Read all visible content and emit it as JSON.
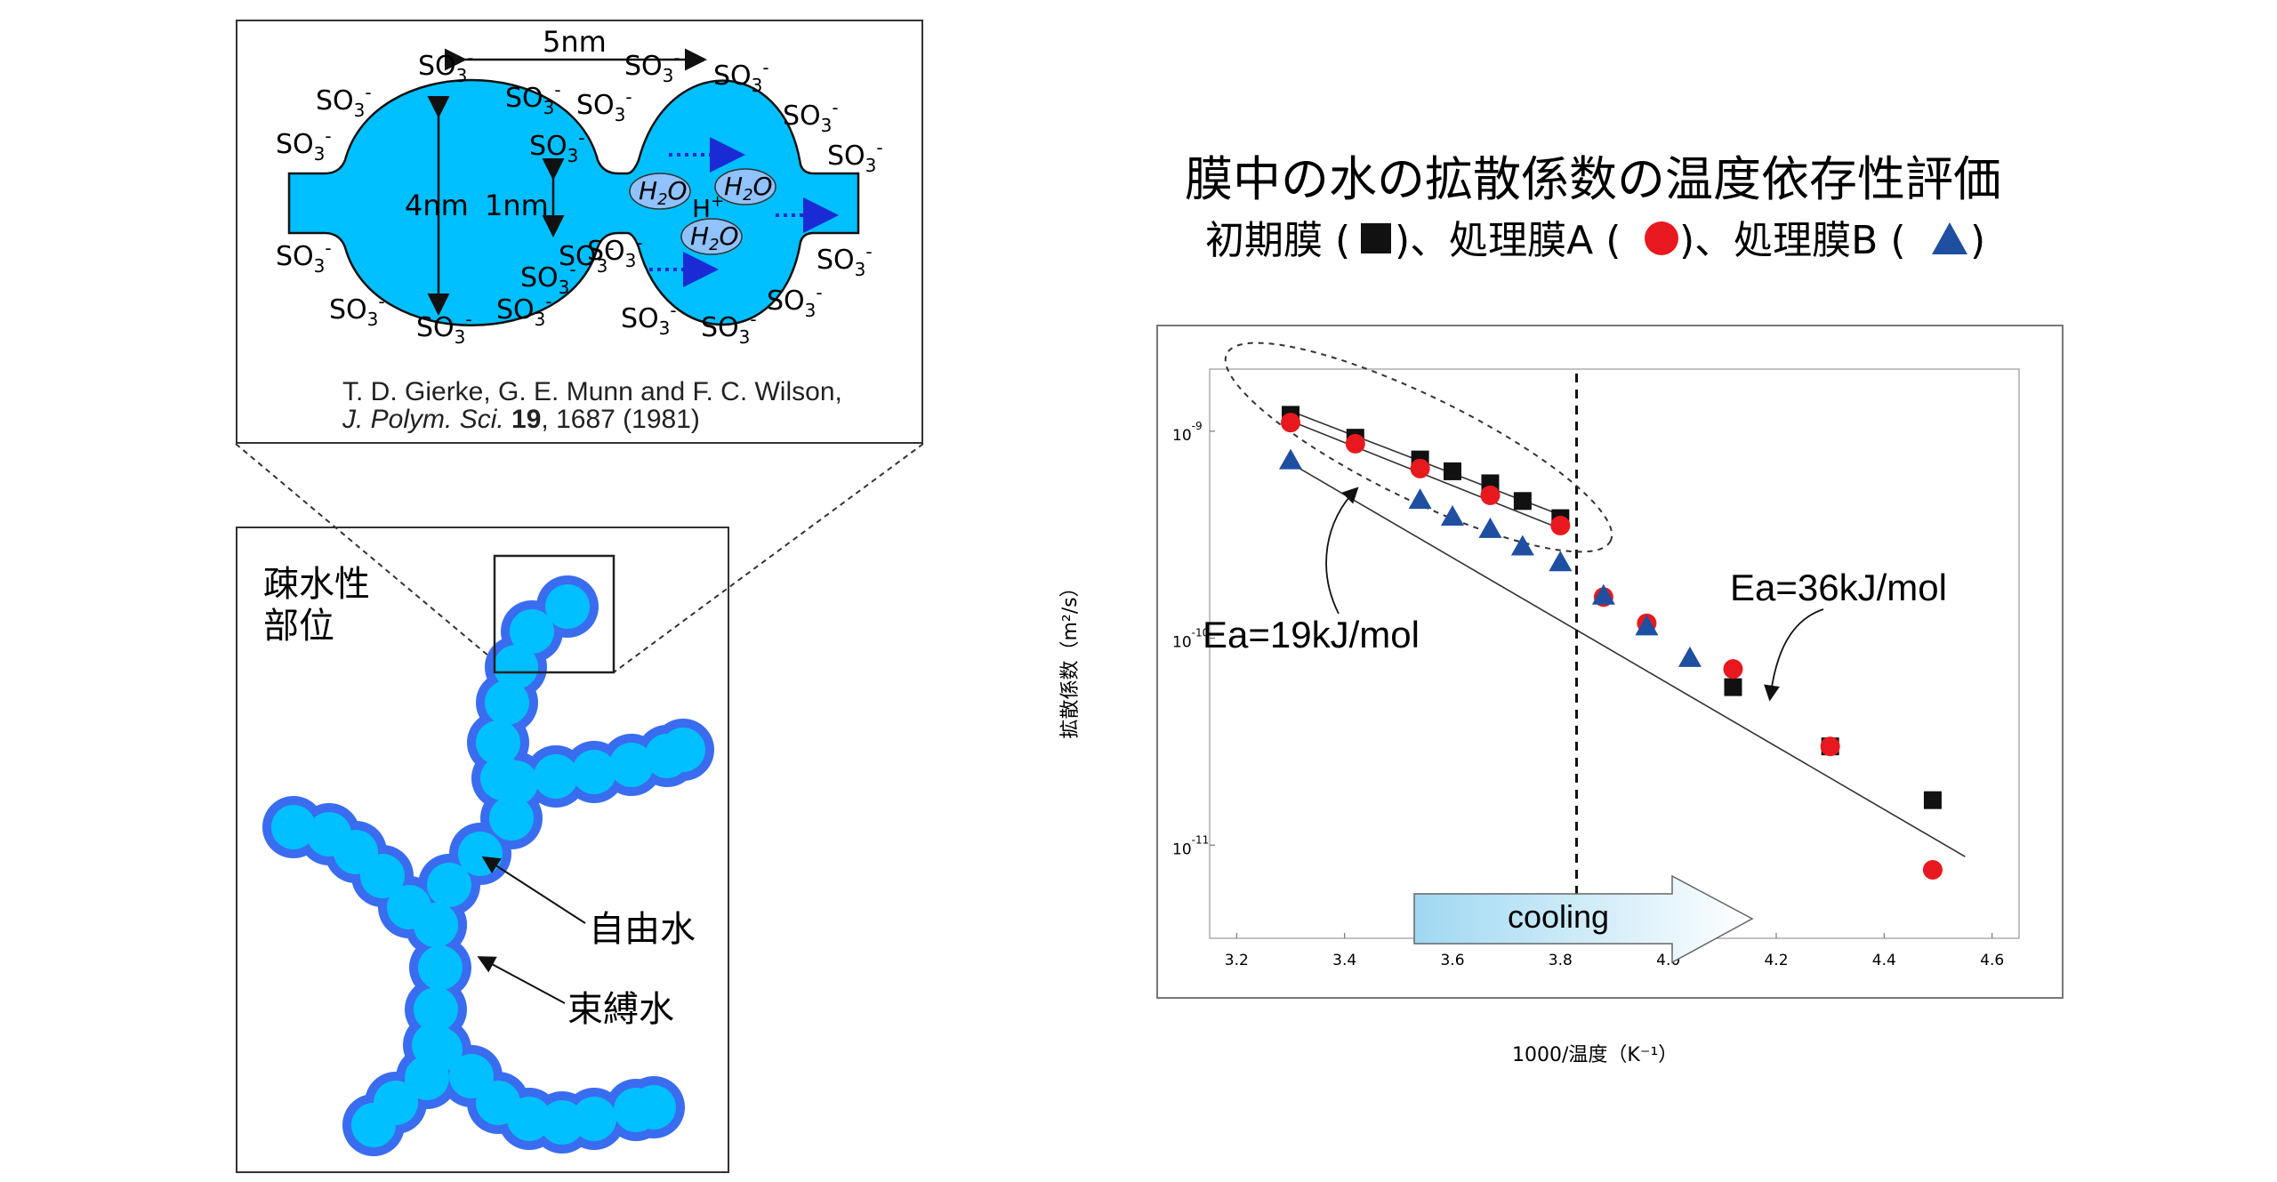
{
  "nafion": {
    "width_label": "5nm",
    "diameter_label": "4nm",
    "channel_label": "1nm",
    "group": "SO",
    "group_sub": "3",
    "group_sup": "-",
    "water": "H",
    "water_sub": "2",
    "water_tail": "O",
    "proton": "H",
    "proton_sup": "+",
    "reference_line1": "T. D. Gierke, G. E. Munn and F. C. Wilson,",
    "reference_journal": "J. Polym. Sci.",
    "reference_volume": "19",
    "reference_pages": ", 1687 (1981)"
  },
  "polymer": {
    "hydrophobic_label_line1": "疎水性",
    "hydrophobic_label_line2": "部位",
    "free_water_label": "自由水",
    "bound_water_label": "束縛水"
  },
  "title": {
    "line1": "膜中の水の拡散係数の温度依存性評価",
    "legend_initial": "初期膜 (",
    "legend_close1": ")、処理膜A (",
    "legend_close2": ")、処理膜B (",
    "legend_close3": ")"
  },
  "colors": {
    "cyan": "#00bfff",
    "blue_outline": "#3a6cf0",
    "red": "#e8191e",
    "triangle": "#1f4fa0",
    "black": "#111111"
  },
  "chart_data": {
    "type": "scatter",
    "title": "膜中の水の拡散係数の温度依存性評価",
    "xlabel": "1000/温度（K⁻¹）",
    "ylabel": "拡散係数（m²/s）",
    "xlim": [
      3.15,
      4.65
    ],
    "ylim_log10": [
      -11.45,
      -8.7
    ],
    "x_ticks": [
      "3.2",
      "3.4",
      "3.6",
      "3.8",
      "4.0",
      "4.2",
      "4.4",
      "4.6"
    ],
    "y_ticks": [
      {
        "base": "10",
        "exp": "-9",
        "value": -9
      },
      {
        "base": "10",
        "exp": "-10",
        "value": -10
      },
      {
        "base": "10",
        "exp": "-11",
        "value": -11
      }
    ],
    "series": [
      {
        "name": "初期膜",
        "marker": "square",
        "color": "#111111",
        "x": [
          3.3,
          3.42,
          3.54,
          3.6,
          3.67,
          3.73,
          3.8,
          4.12,
          4.3,
          4.49
        ],
        "y": [
          1.2e-09,
          9.3e-10,
          7.3e-10,
          6.4e-10,
          5.6e-10,
          4.6e-10,
          3.8e-10,
          5.8e-11,
          3e-11,
          1.65e-11
        ]
      },
      {
        "name": "処理膜A",
        "marker": "circle",
        "color": "#e8191e",
        "x": [
          3.3,
          3.42,
          3.54,
          3.67,
          3.8,
          3.88,
          3.96,
          4.12,
          4.3,
          4.49
        ],
        "y": [
          1.1e-09,
          8.7e-10,
          6.6e-10,
          4.9e-10,
          3.5e-10,
          1.58e-10,
          1.18e-10,
          7.1e-11,
          3e-11,
          7.6e-12
        ]
      },
      {
        "name": "処理膜B",
        "marker": "triangle",
        "color": "#1f4fa0",
        "x": [
          3.3,
          3.54,
          3.6,
          3.67,
          3.73,
          3.8,
          3.88,
          3.96,
          4.04
        ],
        "y": [
          7.3e-10,
          4.7e-10,
          3.9e-10,
          3.4e-10,
          2.8e-10,
          2.35e-10,
          1.62e-10,
          1.15e-10,
          8.1e-11
        ]
      }
    ],
    "fit_lines": [
      {
        "x": [
          3.3,
          3.81
        ],
        "y": [
          1.25e-09,
          3.85e-10
        ]
      },
      {
        "x": [
          3.3,
          3.81
        ],
        "y": [
          1.12e-09,
          3.3e-10
        ]
      },
      {
        "x": [
          3.3,
          4.55
        ],
        "y": [
          7e-10,
          8.8e-12
        ]
      }
    ],
    "divider_x": 3.83,
    "annotations": {
      "ea_low": "Ea=19kJ/mol",
      "ea_high": "Ea=36kJ/mol",
      "arrow_label": "cooling"
    }
  }
}
